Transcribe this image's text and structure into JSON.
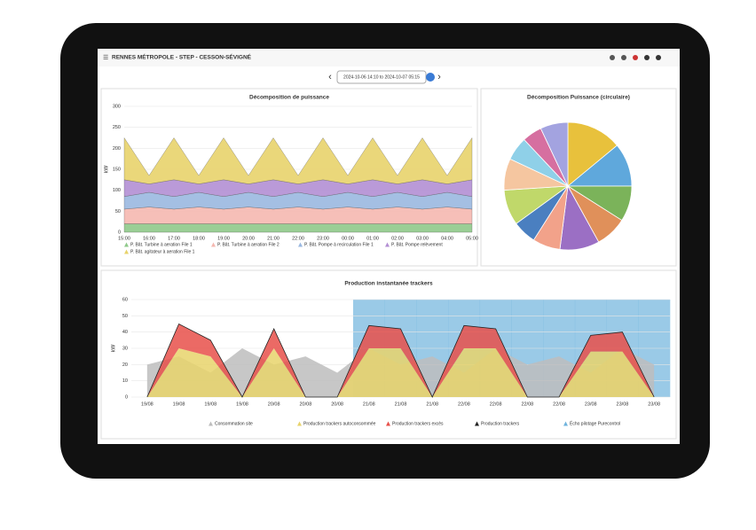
{
  "header": {
    "title": "RENNES MÉTROPOLE - STEP - CESSON-SÉVIGNÉ",
    "date_range": "2024-10-06 14:10 to 2024-10-07 05:15"
  },
  "chart_data": [
    {
      "type": "stacked-area",
      "title": "Décomposition de puissance",
      "y_label": "kW",
      "categories": [
        "15:00",
        "16:00",
        "17:00",
        "18:00",
        "19:00",
        "20:00",
        "21:00",
        "22:00",
        "23:00",
        "00:00",
        "01:00",
        "02:00",
        "03:00",
        "04:00",
        "05:00"
      ],
      "ylim": [
        0,
        300
      ],
      "yticks": [
        0,
        50,
        100,
        150,
        200,
        250,
        300
      ],
      "grid": true,
      "series": [
        {
          "name": "P. Bât. Turbine à aeration File 1",
          "color": "#8fc98a",
          "values": [
            20,
            20,
            20,
            20,
            20,
            20,
            20,
            20,
            20,
            20,
            20,
            20,
            20,
            20,
            20
          ]
        },
        {
          "name": "P. Bât. Turbine à aeration File 2",
          "color": "#f5b8b0",
          "values": [
            35,
            40,
            35,
            40,
            35,
            40,
            35,
            40,
            35,
            40,
            35,
            40,
            35,
            40,
            35
          ]
        },
        {
          "name": "P. Bât. Pompe à recirculation File 1",
          "color": "#9ab8e0",
          "values": [
            30,
            35,
            30,
            35,
            30,
            35,
            30,
            35,
            30,
            35,
            30,
            35,
            30,
            35,
            30
          ]
        },
        {
          "name": "P. Bât. Pompe relèvement",
          "color": "#b38fd4",
          "values": [
            40,
            20,
            40,
            20,
            40,
            20,
            40,
            20,
            40,
            20,
            40,
            20,
            40,
            20,
            40
          ]
        },
        {
          "name": "P. Bât. agitateur à aeration File 1",
          "color": "#e8d36b",
          "values": [
            100,
            20,
            100,
            20,
            100,
            20,
            100,
            20,
            100,
            20,
            100,
            20,
            100,
            20,
            100
          ]
        }
      ]
    },
    {
      "type": "pie",
      "title": "Décomposition Puissance (circulaire)",
      "values": [
        14,
        11,
        9,
        8,
        10,
        7,
        6,
        9,
        8,
        6,
        5,
        7
      ],
      "colors": [
        "#e8c13c",
        "#5fa8dc",
        "#7bb35a",
        "#e0905a",
        "#9b6fc4",
        "#f2a28a",
        "#4a7fc0",
        "#c0d86a",
        "#f5c6a0",
        "#8fd0e8",
        "#d66fa0",
        "#a3a3e0"
      ]
    },
    {
      "type": "area",
      "title": "Production instantanée trackers",
      "y_label": "kW",
      "categories": [
        "19/08",
        "19/08",
        "19/08",
        "19/08",
        "20/08",
        "20/08",
        "20/08",
        "21/08",
        "21/08",
        "21/08",
        "22/08",
        "22/08",
        "22/08",
        "22/08",
        "23/08",
        "23/08",
        "23/08"
      ],
      "ylim": [
        0,
        60
      ],
      "yticks": [
        0,
        10,
        20,
        30,
        40,
        50,
        60
      ],
      "grid": true,
      "series": [
        {
          "name": "Consommation site",
          "color": "#bdbdbd",
          "values": [
            20,
            25,
            15,
            30,
            20,
            25,
            15,
            30,
            20,
            25,
            15,
            30,
            20,
            25,
            15,
            30,
            20
          ]
        },
        {
          "name": "Production trackers autoconsommée",
          "color": "#e8d36b",
          "values": [
            0,
            30,
            25,
            0,
            30,
            0,
            0,
            30,
            30,
            0,
            30,
            30,
            0,
            0,
            28,
            28,
            0
          ]
        },
        {
          "name": "Production trackers excès",
          "color": "#e8504a",
          "values": [
            0,
            15,
            10,
            0,
            12,
            0,
            0,
            14,
            12,
            0,
            14,
            12,
            0,
            0,
            10,
            12,
            0
          ]
        },
        {
          "name": "Production trackers",
          "color": "#222222",
          "values": [
            0,
            45,
            35,
            0,
            42,
            0,
            0,
            44,
            42,
            0,
            44,
            42,
            0,
            0,
            38,
            40,
            0
          ]
        },
        {
          "name": "Écho pilotage Purecontrol",
          "color": "#6fb3dd",
          "values": [
            null,
            null,
            null,
            null,
            null,
            null,
            null,
            60,
            60,
            60,
            60,
            60,
            60,
            60,
            60,
            60,
            60
          ]
        }
      ]
    }
  ]
}
